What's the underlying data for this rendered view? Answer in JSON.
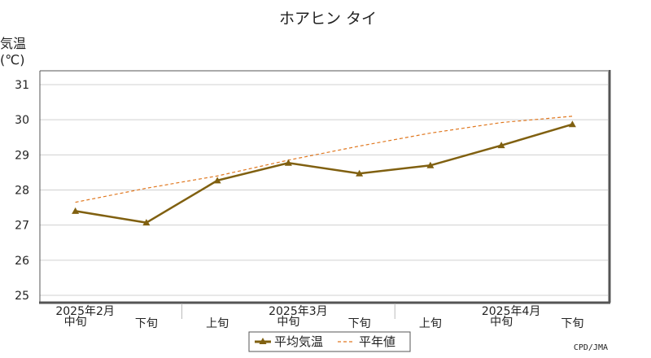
{
  "chart_data": {
    "type": "line",
    "title": "ホアヒン タイ",
    "ylabel_top": "気温",
    "ylabel_unit": "(℃)",
    "ylim": [
      25,
      31
    ],
    "yticks": [
      25,
      26,
      27,
      28,
      29,
      30,
      31
    ],
    "grid": true,
    "categories": [
      "中旬",
      "下旬",
      "上旬",
      "中旬",
      "下旬",
      "上旬",
      "中旬",
      "下旬"
    ],
    "month_labels": [
      {
        "label": "2025年2月",
        "under": 0
      },
      {
        "label": "2025年3月",
        "under": 3
      },
      {
        "label": "2025年4月",
        "under": 6
      }
    ],
    "series": [
      {
        "name": "平均気温",
        "color": "#806010",
        "marker": "triangle",
        "values": [
          27.4,
          27.07,
          28.27,
          28.77,
          28.47,
          28.7,
          29.27,
          29.87
        ]
      },
      {
        "name": "平年値",
        "color": "#e07820",
        "style": "dashed",
        "values": [
          27.65,
          28.05,
          28.4,
          28.85,
          29.25,
          29.62,
          29.92,
          30.1
        ]
      }
    ],
    "legend_position": "bottom-center",
    "credit": "CPD/JMA"
  }
}
